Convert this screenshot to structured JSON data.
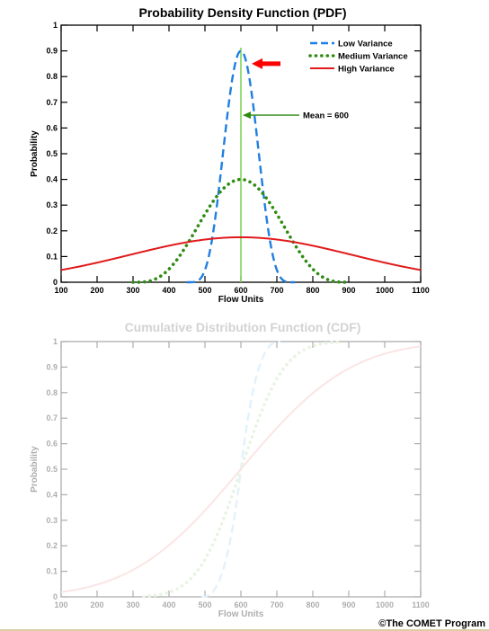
{
  "credit": "©The COMET Program",
  "chart_data": [
    {
      "type": "line",
      "title": "Probability Density Function (PDF)",
      "xlabel": "Flow Units",
      "ylabel": "Probability",
      "xlim": [
        100,
        1100
      ],
      "ylim": [
        0,
        1
      ],
      "x_ticks": [
        100,
        200,
        300,
        400,
        500,
        600,
        700,
        800,
        900,
        1000,
        1100
      ],
      "y_ticks": [
        0,
        0.1,
        0.2,
        0.3,
        0.4,
        0.5,
        0.6,
        0.7,
        0.8,
        0.9,
        1
      ],
      "y_tick_labels": [
        "0",
        "0.1",
        "0.2",
        "0.3",
        "0.4",
        "0.5",
        "0.6",
        "0.7",
        "0.8",
        "0.9",
        "1"
      ],
      "legend_position": "top-right",
      "series": [
        {
          "name": "Low Variance",
          "style": "dashed",
          "color": "#1f7fe0",
          "mean": 600,
          "peak": 0.9,
          "support": [
            450,
            750
          ]
        },
        {
          "name": "Medium Variance",
          "style": "dotted",
          "color": "#2e8b12",
          "mean": 600,
          "peak": 0.4,
          "support": [
            300,
            900
          ]
        },
        {
          "name": "High Variance",
          "style": "solid",
          "color": "#e01a1a",
          "mean": 600,
          "peak": 0.175,
          "support": [
            100,
            1100
          ]
        }
      ],
      "annotations": [
        {
          "text": "Mean = 600",
          "x": 600,
          "y": 0.65
        },
        {
          "type": "arrow",
          "x": 640,
          "y": 0.85,
          "color": "#ff0000"
        }
      ],
      "mean_line": {
        "x": 600,
        "color": "#7fd35a"
      }
    },
    {
      "type": "line",
      "faded": true,
      "title": "Cumulative Distribution Function (CDF)",
      "xlabel": "Flow Units",
      "ylabel": "Probability",
      "xlim": [
        100,
        1100
      ],
      "ylim": [
        0,
        1
      ],
      "x_ticks": [
        100,
        200,
        300,
        400,
        500,
        600,
        700,
        800,
        900,
        1000,
        1100
      ],
      "y_ticks": [
        0,
        0.1,
        0.2,
        0.3,
        0.4,
        0.5,
        0.6,
        0.7,
        0.8,
        0.9,
        1
      ],
      "y_tick_labels": [
        "0",
        "0.1",
        "0.2",
        "0.3",
        "0.4",
        "0.5",
        "0.6",
        "0.7",
        "0.8",
        "0.9",
        "1"
      ],
      "series": [
        {
          "style": "dashed",
          "color": "#a9d4f3",
          "support": [
            490,
            710
          ]
        },
        {
          "style": "dotted",
          "color": "#b9e0a6",
          "support": [
            330,
            880
          ]
        },
        {
          "style": "solid",
          "color": "#f5b1ae",
          "support": [
            100,
            1100
          ]
        }
      ]
    }
  ]
}
